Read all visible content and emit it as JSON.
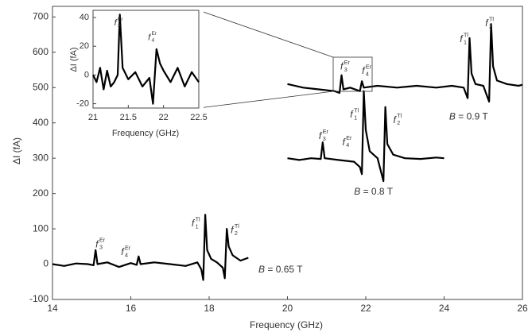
{
  "chart_data": {
    "type": "line",
    "xlabel": "Frequency (GHz)",
    "ylabel": "ΔI (fA)",
    "xlim": [
      14,
      26
    ],
    "ylim": [
      -100,
      730
    ],
    "xticks": [
      14,
      16,
      18,
      20,
      22,
      24,
      26
    ],
    "yticks": [
      -100,
      0,
      100,
      200,
      300,
      400,
      500,
      600,
      700
    ],
    "series": [
      {
        "color": "#000000",
        "x": [
          14,
          14.3,
          14.6,
          14.9,
          15.05,
          15.1,
          15.15,
          15.4,
          15.7,
          16.0,
          16.15,
          16.2,
          16.25,
          16.6,
          17.0,
          17.4,
          17.7,
          17.8,
          17.85,
          17.9,
          17.95,
          18.05,
          18.2,
          18.35,
          18.4,
          18.45,
          18.5,
          18.6,
          18.8,
          19.0
        ],
        "values": [
          0,
          -5,
          2,
          0,
          -3,
          40,
          0,
          5,
          -8,
          3,
          -2,
          22,
          0,
          5,
          0,
          -5,
          5,
          -15,
          -45,
          140,
          40,
          15,
          5,
          -10,
          -40,
          100,
          50,
          25,
          10,
          18
        ]
      },
      {
        "color": "#000000",
        "x": [
          20,
          20.3,
          20.6,
          20.85,
          20.9,
          20.95,
          21.3,
          21.7,
          21.85,
          21.9,
          21.95,
          22.0,
          22.1,
          22.3,
          22.45,
          22.5,
          22.55,
          22.7,
          23.0,
          23.4,
          23.8,
          24.0
        ],
        "values": [
          300,
          295,
          300,
          298,
          345,
          300,
          295,
          290,
          275,
          255,
          490,
          380,
          320,
          300,
          235,
          445,
          340,
          310,
          300,
          298,
          302,
          300
        ]
      },
      {
        "color": "#000000",
        "x": [
          20,
          20.4,
          20.8,
          21.2,
          21.33,
          21.38,
          21.43,
          21.6,
          21.85,
          21.9,
          21.95,
          22.3,
          22.8,
          23.3,
          23.8,
          24.2,
          24.5,
          24.6,
          24.65,
          24.7,
          24.8,
          25.0,
          25.15,
          25.2,
          25.25,
          25.35,
          25.6,
          25.9,
          26
        ],
        "values": [
          510,
          500,
          495,
          490,
          485,
          535,
          495,
          500,
          490,
          518,
          500,
          505,
          500,
          505,
          500,
          505,
          500,
          470,
          640,
          540,
          510,
          505,
          460,
          680,
          560,
          520,
          510,
          505,
          508
        ]
      }
    ],
    "field_labels": [
      {
        "symbol": "B",
        "text": " = 0.65 T",
        "x": 19.26,
        "y": -17
      },
      {
        "symbol": "B",
        "text": " = 0.8 T",
        "x": 21.7,
        "y": 204
      },
      {
        "symbol": "B",
        "text": " = 0.9 T",
        "x": 24.13,
        "y": 416
      }
    ],
    "annotations": [
      {
        "text": "f",
        "sub": "3",
        "sup": "Er",
        "color": "#8b1a1a",
        "x": 15.1,
        "y": 55
      },
      {
        "text": "f",
        "sub": "4",
        "sup": "Er",
        "color": "#c0622a",
        "x": 15.75,
        "y": 33
      },
      {
        "text": "f",
        "sub": "1",
        "sup": "Tl",
        "color": "#1e6fa8",
        "x": 17.55,
        "y": 114
      },
      {
        "text": "f",
        "sub": "2",
        "sup": "Tl",
        "color": "#2aa0d8",
        "x": 18.55,
        "y": 95
      },
      {
        "text": "f",
        "sub": "3",
        "sup": "Er",
        "color": "#8b1a1a",
        "x": 20.8,
        "y": 362
      },
      {
        "text": "f",
        "sub": "4",
        "sup": "Er",
        "color": "#c0622a",
        "x": 21.4,
        "y": 344
      },
      {
        "text": "f",
        "sub": "1",
        "sup": "Tl",
        "color": "#1e6fa8",
        "x": 21.6,
        "y": 422
      },
      {
        "text": "f",
        "sub": "2",
        "sup": "Tl",
        "color": "#2aa0d8",
        "x": 22.7,
        "y": 407
      },
      {
        "text": "f",
        "sub": "3",
        "sup": "Er",
        "color": "#8b1a1a",
        "x": 21.35,
        "y": 558
      },
      {
        "text": "f",
        "sub": "4",
        "sup": "Er",
        "color": "#c0622a",
        "x": 21.9,
        "y": 546
      },
      {
        "text": "f",
        "sub": "1",
        "sup": "Tl",
        "color": "#1e6fa8",
        "x": 24.4,
        "y": 636
      },
      {
        "text": "f",
        "sub": "2",
        "sup": "Tl",
        "color": "#2aa0d8",
        "x": 25.05,
        "y": 681
      }
    ],
    "inset": {
      "xlabel": "Frequency (GHz)",
      "ylabel": "ΔI (fA)",
      "xlim": [
        21,
        22.5
      ],
      "ylim": [
        -23,
        45
      ],
      "xticks": [
        21,
        21.5,
        22,
        22.5
      ],
      "yticks": [
        -20,
        0,
        20,
        40
      ],
      "color": "#000000",
      "x": [
        21,
        21.05,
        21.1,
        21.15,
        21.2,
        21.25,
        21.3,
        21.35,
        21.38,
        21.42,
        21.5,
        21.6,
        21.7,
        21.8,
        21.85,
        21.9,
        21.95,
        22.0,
        22.1,
        22.2,
        22.3,
        22.4,
        22.5
      ],
      "values": [
        0,
        -5,
        5,
        -10,
        3,
        -8,
        -5,
        0,
        42,
        5,
        -3,
        2,
        -8,
        -2,
        -20,
        18,
        8,
        3,
        -5,
        5,
        -8,
        2,
        -5
      ],
      "annotations": [
        {
          "text": "f",
          "sub": "3",
          "sup": "Er",
          "color": "#8b1a1a",
          "x": 21.3,
          "y": 36
        },
        {
          "text": "f",
          "sub": "4",
          "sup": "Er",
          "color": "#c0622a",
          "x": 21.78,
          "y": 26
        }
      ]
    }
  }
}
